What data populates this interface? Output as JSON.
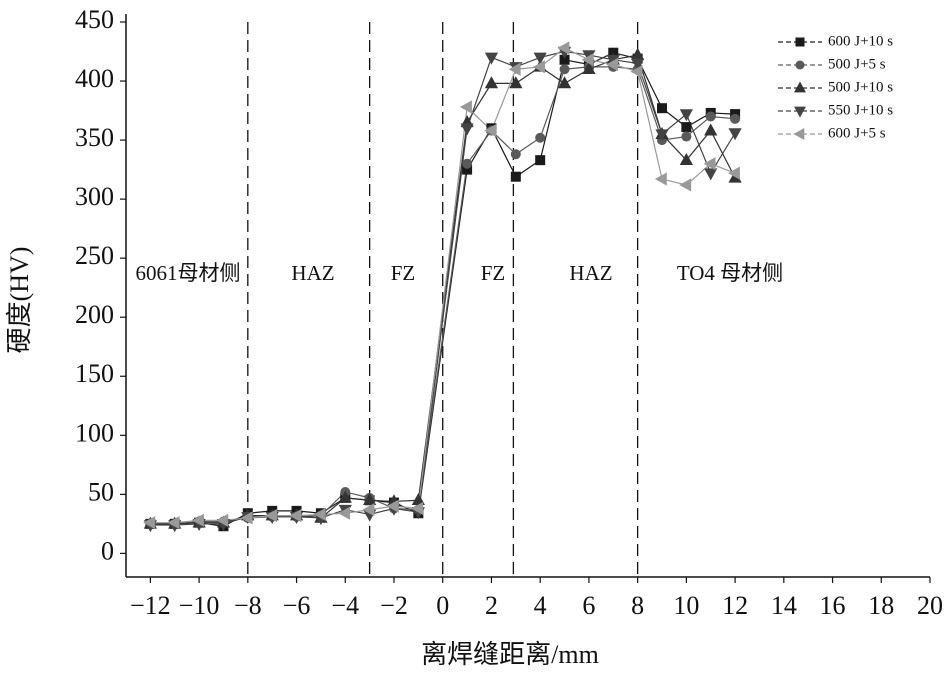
{
  "chart_data": {
    "type": "line",
    "xlabel": "离焊缝距离/mm",
    "ylabel": "硬度(HV)",
    "x": [
      -12,
      -11,
      -10,
      -9,
      -8,
      -7,
      -6,
      -5,
      -4,
      -3,
      -2,
      -1,
      1,
      2,
      3,
      4,
      5,
      6,
      7,
      8,
      9,
      10,
      11,
      12
    ],
    "series": [
      {
        "name": "600 J+10 s",
        "color": "#1a1a1a",
        "marker": "square",
        "values": [
          25,
          25,
          26,
          23,
          34,
          36,
          36,
          34,
          47,
          45,
          43,
          34,
          325,
          360,
          319,
          333,
          418,
          414,
          424,
          419,
          377,
          361,
          373,
          372
        ]
      },
      {
        "name": "500 J+5 s",
        "color": "#5a5a5a",
        "marker": "circle",
        "values": [
          25,
          25,
          27,
          27,
          30,
          31,
          31,
          32,
          52,
          47,
          38,
          37,
          330,
          358,
          338,
          352,
          410,
          412,
          412,
          410,
          350,
          353,
          370,
          368
        ]
      },
      {
        "name": "500 J+10 s",
        "color": "#333333",
        "marker": "triangle-up",
        "values": [
          25,
          25,
          26,
          26,
          32,
          32,
          32,
          30,
          47,
          45,
          44,
          45,
          365,
          398,
          398,
          412,
          398,
          410,
          418,
          422,
          355,
          333,
          358,
          318
        ]
      },
      {
        "name": "550 J+10 s",
        "color": "#444444",
        "marker": "triangle-down",
        "values": [
          24,
          24,
          25,
          25,
          31,
          31,
          31,
          30,
          37,
          33,
          38,
          35,
          360,
          420,
          412,
          420,
          425,
          422,
          418,
          415,
          355,
          372,
          322,
          356
        ]
      },
      {
        "name": "600 J+5 s",
        "color": "#999999",
        "marker": "triangle-left",
        "values": [
          26,
          26,
          28,
          28,
          30,
          32,
          32,
          33,
          34,
          37,
          40,
          38,
          378,
          358,
          410,
          412,
          428,
          418,
          414,
          408,
          317,
          312,
          330,
          322
        ]
      }
    ],
    "xlim": [
      -13,
      20
    ],
    "xticks": [
      {
        "value": -12,
        "label": "−12"
      },
      {
        "value": -10,
        "label": "−10"
      },
      {
        "value": -8,
        "label": "−8"
      },
      {
        "value": -6,
        "label": "−6"
      },
      {
        "value": -4,
        "label": "−4"
      },
      {
        "value": -2,
        "label": "−2"
      },
      0,
      2,
      4,
      6,
      8,
      10,
      12,
      14,
      16,
      18,
      20
    ],
    "ylim": [
      -20,
      450
    ],
    "yticks": [
      0,
      50,
      100,
      150,
      200,
      250,
      300,
      350,
      400,
      450
    ],
    "zone_lines": [
      -8,
      -3,
      0,
      2.9,
      8
    ],
    "annotations": [
      "6061母材侧",
      "HAZ",
      "FZ",
      "FZ",
      "HAZ",
      "TO4 母材侧"
    ],
    "legend": "top-right"
  }
}
